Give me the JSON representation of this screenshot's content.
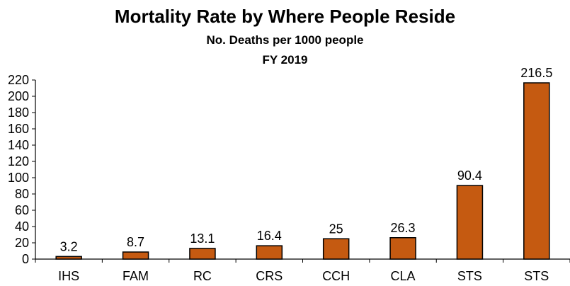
{
  "chart_data": {
    "type": "bar",
    "title": "Mortality Rate by Where People Reside",
    "subtitle": "No. Deaths per 1000 people",
    "subtitle2": "FY 2019",
    "categories": [
      "IHS",
      "FAM",
      "RC",
      "CRS",
      "CCH",
      "CLA",
      "STS",
      "STS"
    ],
    "values": [
      3.2,
      8.7,
      13.1,
      16.4,
      25,
      26.3,
      90.4,
      216.5
    ],
    "data_labels": [
      "3.2",
      "8.7",
      "13.1",
      "16.4",
      "25",
      "26.3",
      "90.4",
      "216.5"
    ],
    "xlabel": "",
    "ylabel": "",
    "ylim": [
      0,
      220
    ],
    "yticks": [
      0,
      20,
      40,
      60,
      80,
      100,
      120,
      140,
      160,
      180,
      200,
      220
    ],
    "grid": false,
    "legend": "none",
    "bar_color": "#C55A11",
    "bar_edge_color": "#000000"
  }
}
